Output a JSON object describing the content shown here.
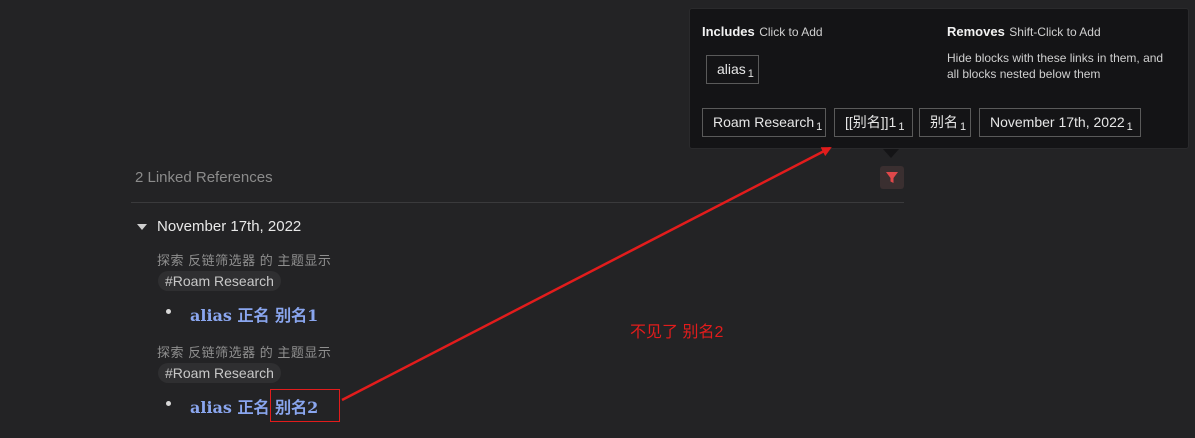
{
  "filter": {
    "includes_title": "Includes",
    "includes_hint": "Click to Add",
    "removes_title": "Removes",
    "removes_hint": "Shift-Click to Add",
    "removes_desc_line1": "Hide blocks with these links in them, and",
    "removes_desc_line2": "all blocks nested below them",
    "included_chips": [
      {
        "label": "alias",
        "count": "1"
      }
    ],
    "available_chips": [
      {
        "label": "Roam Research",
        "count": "1"
      },
      {
        "label": "[[别名]]1",
        "count": "1"
      },
      {
        "label": "别名",
        "count": "1"
      },
      {
        "label": "November 17th, 2022",
        "count": "1"
      }
    ]
  },
  "references": {
    "title": "2 Linked References",
    "groups": [
      {
        "page_title": "November 17th, 2022",
        "items": [
          {
            "breadcrumb": "探索 反链筛选器 的 主题显示",
            "tag": "#Roam Research",
            "block": {
              "alias": "alias",
              "main": "正名",
              "link": "别名1"
            }
          },
          {
            "breadcrumb": "探索 反链筛选器 的 主题显示",
            "tag": "#Roam Research",
            "block": {
              "alias": "alias",
              "main": "正名",
              "link": "别名2"
            }
          }
        ]
      }
    ]
  },
  "annotation": {
    "text": "不见了 别名2",
    "color": "#e21c1c"
  },
  "colors": {
    "background": "#232325",
    "popover": "#141416",
    "link": "#8aa6ef",
    "filter_icon": "#e0484a"
  }
}
